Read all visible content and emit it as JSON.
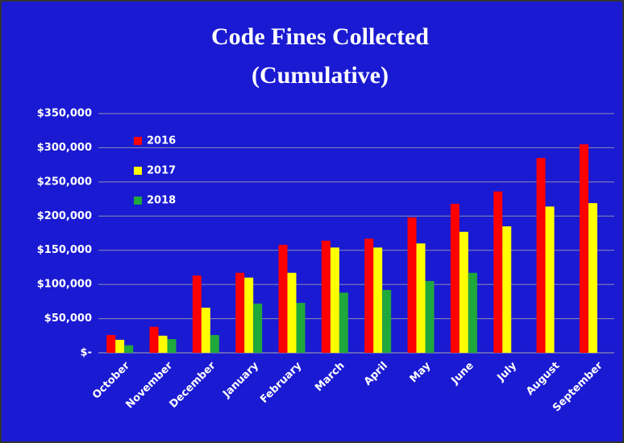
{
  "chart_data": {
    "type": "bar",
    "title": [
      "Code Fines Collected",
      "(Cumulative)"
    ],
    "categories": [
      "October",
      "November",
      "December",
      "January",
      "February",
      "March",
      "April",
      "May",
      "June",
      "July",
      "August",
      "September"
    ],
    "series": [
      {
        "name": "2016",
        "color": "#ff0000",
        "values": [
          26000,
          38000,
          113000,
          117000,
          158000,
          164000,
          167000,
          198000,
          218000,
          236000,
          285000,
          305000
        ]
      },
      {
        "name": "2017",
        "color": "#ffff00",
        "values": [
          19000,
          25000,
          66000,
          110000,
          117000,
          154000,
          154000,
          160000,
          177000,
          185000,
          214000,
          219000
        ]
      },
      {
        "name": "2018",
        "color": "#1fa83c",
        "values": [
          11000,
          20000,
          26000,
          72000,
          73000,
          88000,
          92000,
          105000,
          117000,
          null,
          null,
          null
        ]
      }
    ],
    "ylim": [
      0,
      350000
    ],
    "yticks": [
      {
        "value": 0,
        "label": "$-"
      },
      {
        "value": 50000,
        "label": "$50,000"
      },
      {
        "value": 100000,
        "label": "$100,000"
      },
      {
        "value": 150000,
        "label": "$150,000"
      },
      {
        "value": 200000,
        "label": "$200,000"
      },
      {
        "value": 250000,
        "label": "$250,000"
      },
      {
        "value": 300000,
        "label": "$300,000"
      },
      {
        "value": 350000,
        "label": "$350,000"
      }
    ],
    "grid": true,
    "legend": "top-left"
  }
}
